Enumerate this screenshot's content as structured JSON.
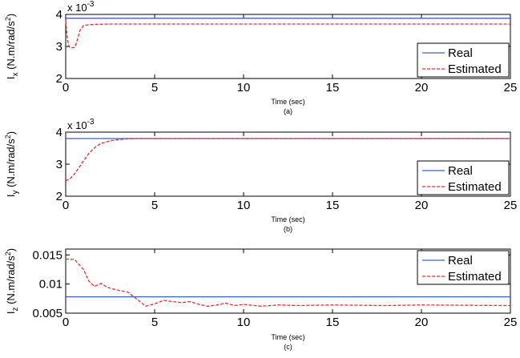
{
  "chart_data": [
    {
      "type": "line",
      "caption": "(a)",
      "xlabel": "Time (sec)",
      "ylabel": "I_x (N.m/rad/s^2)",
      "ylabel_parts": {
        "sym": "I",
        "sub": "x",
        "unit": " (N.m/rad/s",
        "sup": "2",
        "close": ")"
      },
      "multiplier": "x 10",
      "multiplier_exp": "-3",
      "xlim": [
        0,
        25
      ],
      "ylim": [
        2,
        4
      ],
      "xticks": [
        0,
        5,
        10,
        15,
        20,
        25
      ],
      "yticks": [
        2,
        3,
        4
      ],
      "ytick_labels": [
        "2",
        "3",
        "4"
      ],
      "legend": {
        "position": "bottom-right",
        "entries": [
          "Real",
          "Estimated"
        ]
      },
      "series": [
        {
          "name": "Real",
          "style": "solid",
          "color": "#3b5fc0",
          "x": [
            0,
            25
          ],
          "y": [
            3.88,
            3.88
          ]
        },
        {
          "name": "Estimated",
          "style": "dashed",
          "color": "#e03030",
          "x": [
            0,
            0.1,
            0.2,
            0.3,
            0.4,
            0.5,
            0.6,
            0.8,
            1.0,
            1.3,
            1.7,
            2.5,
            5,
            10,
            15,
            20,
            25
          ],
          "y": [
            3.8,
            3.2,
            2.98,
            2.96,
            2.96,
            2.98,
            3.1,
            3.5,
            3.65,
            3.68,
            3.69,
            3.7,
            3.7,
            3.7,
            3.7,
            3.7,
            3.7
          ]
        }
      ]
    },
    {
      "type": "line",
      "caption": "(b)",
      "xlabel": "Time (sec)",
      "ylabel": "I_y (N.m/rad/s^2)",
      "ylabel_parts": {
        "sym": "I",
        "sub": "y",
        "unit": " (N.m/rad/s",
        "sup": "2",
        "close": ")"
      },
      "multiplier": "x 10",
      "multiplier_exp": "-3",
      "xlim": [
        0,
        25
      ],
      "ylim": [
        2,
        4
      ],
      "xticks": [
        0,
        5,
        10,
        15,
        20,
        25
      ],
      "yticks": [
        2,
        3,
        4
      ],
      "ytick_labels": [
        "2",
        "3",
        "4"
      ],
      "legend": {
        "position": "bottom-right",
        "entries": [
          "Real",
          "Estimated"
        ]
      },
      "series": [
        {
          "name": "Real",
          "style": "solid",
          "color": "#3b5fc0",
          "x": [
            0,
            25
          ],
          "y": [
            3.8,
            3.8
          ]
        },
        {
          "name": "Estimated",
          "style": "dashed",
          "color": "#e03030",
          "x": [
            0,
            0.25,
            0.5,
            0.75,
            1.0,
            1.25,
            1.5,
            1.75,
            2.0,
            2.5,
            3.0,
            3.5,
            4.0,
            5,
            10,
            15,
            20,
            25
          ],
          "y": [
            2.48,
            2.55,
            2.7,
            2.9,
            3.1,
            3.3,
            3.45,
            3.57,
            3.65,
            3.73,
            3.77,
            3.79,
            3.8,
            3.8,
            3.8,
            3.8,
            3.8,
            3.8
          ]
        }
      ]
    },
    {
      "type": "line",
      "caption": "(c)",
      "xlabel": "Time (sec)",
      "ylabel": "I_z (N.m/rad/s^2)",
      "ylabel_parts": {
        "sym": "I",
        "sub": "z",
        "unit": " (N.m/rad/s",
        "sup": "2",
        "close": ")"
      },
      "multiplier": "",
      "multiplier_exp": "",
      "xlim": [
        0,
        25
      ],
      "ylim": [
        0.005,
        0.016
      ],
      "xticks": [
        0,
        5,
        10,
        15,
        20,
        25
      ],
      "yticks": [
        0.005,
        0.01,
        0.015
      ],
      "ytick_labels": [
        "0.005",
        "0.01",
        "0.015"
      ],
      "legend": {
        "position": "top-right",
        "entries": [
          "Real",
          "Estimated"
        ]
      },
      "series": [
        {
          "name": "Real",
          "style": "solid",
          "color": "#3b5fc0",
          "x": [
            0,
            25
          ],
          "y": [
            0.0078,
            0.0078
          ]
        },
        {
          "name": "Estimated",
          "style": "dashed",
          "color": "#e03030",
          "x": [
            0,
            0.5,
            1.0,
            1.3,
            1.6,
            2.0,
            2.3,
            2.6,
            3.0,
            3.5,
            4.0,
            4.5,
            5.0,
            5.5,
            6.0,
            6.5,
            7.0,
            7.5,
            8.0,
            8.5,
            9.0,
            9.5,
            10,
            11,
            12,
            13,
            15,
            18,
            20,
            25
          ],
          "y": [
            0.0143,
            0.0142,
            0.0125,
            0.0105,
            0.0096,
            0.0101,
            0.0095,
            0.0092,
            0.0089,
            0.0086,
            0.0074,
            0.0062,
            0.0066,
            0.0072,
            0.007,
            0.0068,
            0.007,
            0.0065,
            0.0062,
            0.0064,
            0.0067,
            0.0063,
            0.0065,
            0.0062,
            0.0064,
            0.0063,
            0.0064,
            0.0063,
            0.0064,
            0.0063
          ]
        }
      ]
    }
  ]
}
